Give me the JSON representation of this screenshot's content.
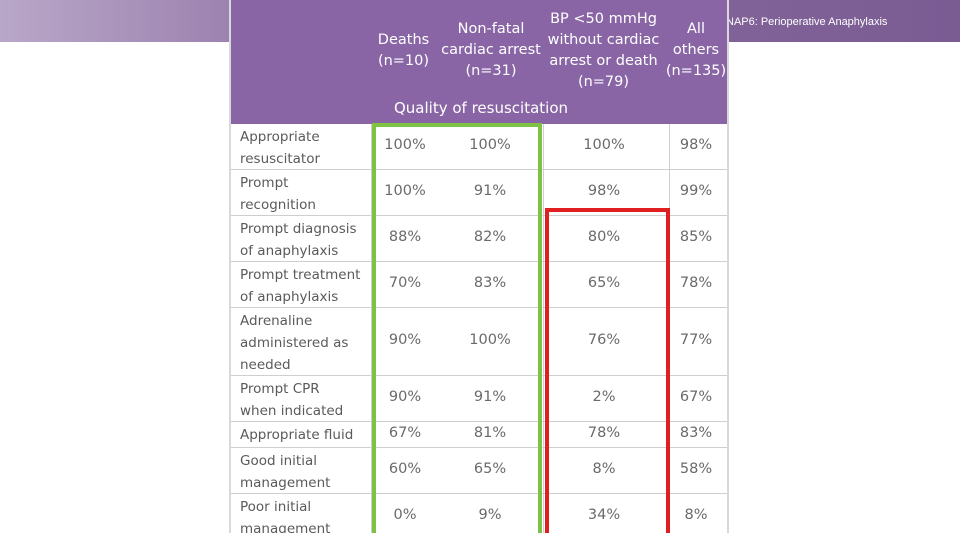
{
  "slide": {
    "title": "NAP6: Perioperative Anaphylaxis"
  },
  "table": {
    "columns": [
      {
        "lines": [
          "Deaths",
          "(n=10)"
        ]
      },
      {
        "lines": [
          "Non-fatal",
          "cardiac arrest",
          "(n=31)"
        ]
      },
      {
        "lines": [
          "BP <50 mmHg",
          "without cardiac",
          "arrest or death",
          "(n=79)"
        ]
      },
      {
        "lines": [
          "All",
          "others",
          "(n=135)"
        ]
      }
    ],
    "section_title": "Quality of resuscitation",
    "rows": [
      {
        "label": [
          "Appropriate",
          "resuscitator"
        ],
        "values": [
          "100%",
          "100%",
          "100%",
          "98%"
        ]
      },
      {
        "label": [
          "Prompt",
          "recognition"
        ],
        "values": [
          "100%",
          "91%",
          "98%",
          "99%"
        ]
      },
      {
        "label": [
          "Prompt diagnosis",
          "of anaphylaxis"
        ],
        "values": [
          "88%",
          "82%",
          "80%",
          "85%"
        ]
      },
      {
        "label": [
          "Prompt treatment",
          "of anaphylaxis"
        ],
        "values": [
          "70%",
          "83%",
          "65%",
          "78%"
        ]
      },
      {
        "label": [
          "Adrenaline",
          "administered as",
          "needed"
        ],
        "values": [
          "90%",
          "100%",
          "76%",
          "77%"
        ]
      },
      {
        "label": [
          "Prompt CPR",
          "when indicated"
        ],
        "values": [
          "90%",
          "91%",
          "2%",
          "67%"
        ]
      },
      {
        "label": [
          "Appropriate fluid"
        ],
        "values": [
          "67%",
          "81%",
          "78%",
          "83%"
        ]
      },
      {
        "label": [
          "Good initial",
          "management"
        ],
        "values": [
          "60%",
          "65%",
          "8%",
          "58%"
        ]
      },
      {
        "label": [
          "Poor initial",
          "management"
        ],
        "values": [
          "0%",
          "9%",
          "34%",
          "8%"
        ]
      }
    ]
  },
  "colors": {
    "header_purple": "#8965a5",
    "highlight_green": "#7dc242",
    "highlight_red": "#e02020"
  }
}
